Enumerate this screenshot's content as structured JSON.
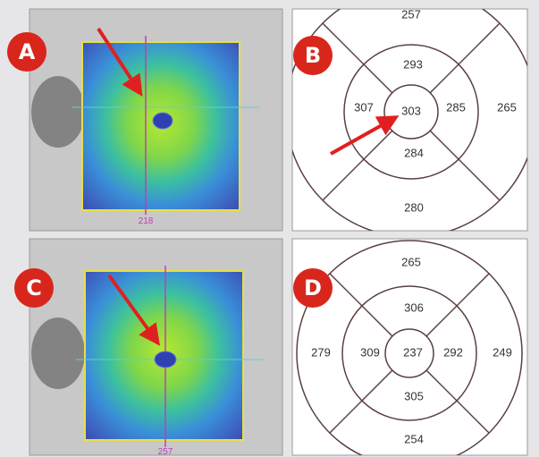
{
  "panels": [
    {
      "label": "A",
      "scan_label": "218"
    },
    {
      "label": "B",
      "grid": {
        "top": "257",
        "inner_top": "293",
        "inner_left": "307",
        "center": "303",
        "inner_right": "285",
        "outer_right": "265",
        "inner_bottom": "284",
        "bottom": "280"
      }
    },
    {
      "label": "C",
      "scan_label": "257"
    },
    {
      "label": "D",
      "grid": {
        "top": "265",
        "inner_top": "306",
        "outer_left": "279",
        "inner_left": "309",
        "center": "237",
        "inner_right": "292",
        "outer_right": "249",
        "inner_bottom": "305",
        "bottom": "254"
      }
    }
  ]
}
